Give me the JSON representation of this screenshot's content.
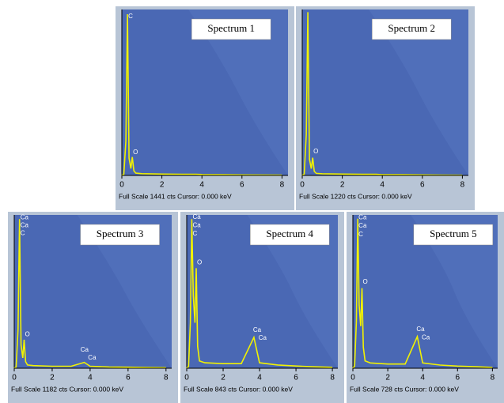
{
  "chart_data": [
    {
      "type": "line",
      "title": "Spectrum 1",
      "footer": "Full Scale 1441 cts  Cursor: 0.000 keV",
      "color": "#f2f200",
      "x": [
        0,
        0.1,
        0.2,
        0.28,
        0.36,
        0.45,
        0.52,
        0.6,
        0.7,
        1,
        2,
        3,
        3.69,
        4,
        5,
        6,
        7,
        8
      ],
      "values": [
        0,
        10,
        300,
        1400,
        150,
        60,
        160,
        40,
        20,
        15,
        12,
        10,
        10,
        8,
        6,
        5,
        4,
        3
      ],
      "xlim": [
        0,
        8.3
      ],
      "xticks": [
        0,
        2,
        4,
        6,
        8
      ],
      "ylim": [
        0,
        1441
      ],
      "annotations": [
        {
          "text": "C",
          "x": 0.28,
          "y": 1380
        },
        {
          "text": "O",
          "x": 0.52,
          "y": 200
        }
      ]
    },
    {
      "type": "line",
      "title": "Spectrum 2",
      "footer": "Full Scale 1220 cts  Cursor: 0.000 keV",
      "color": "#f2f200",
      "x": [
        0,
        0.1,
        0.2,
        0.28,
        0.36,
        0.45,
        0.52,
        0.6,
        0.7,
        1,
        2,
        3,
        3.69,
        4,
        5,
        6,
        7,
        8
      ],
      "values": [
        0,
        10,
        300,
        1200,
        120,
        50,
        130,
        30,
        15,
        12,
        10,
        8,
        8,
        6,
        5,
        4,
        3,
        2
      ],
      "xlim": [
        0,
        8.3
      ],
      "xticks": [
        0,
        2,
        4,
        6,
        8
      ],
      "ylim": [
        0,
        1220
      ],
      "annotations": [
        {
          "text": "O",
          "x": 0.52,
          "y": 175
        }
      ]
    },
    {
      "type": "line",
      "title": "Spectrum 3",
      "footer": "Full Scale 1182 cts  Cursor: 0.000 keV",
      "color": "#f2f200",
      "x": [
        0,
        0.1,
        0.2,
        0.28,
        0.36,
        0.45,
        0.52,
        0.6,
        0.7,
        1,
        2,
        3,
        3.69,
        4,
        5,
        6,
        7,
        8
      ],
      "values": [
        0,
        10,
        300,
        1150,
        180,
        80,
        220,
        50,
        25,
        20,
        15,
        15,
        45,
        15,
        10,
        8,
        6,
        4
      ],
      "xlim": [
        0,
        8.3
      ],
      "xticks": [
        0,
        2,
        4,
        6,
        8
      ],
      "ylim": [
        0,
        1182
      ],
      "annotations": [
        {
          "text": "Ca",
          "x": 0.28,
          "y": 1160
        },
        {
          "text": "Ca",
          "x": 0.28,
          "y": 1100
        },
        {
          "text": "C",
          "x": 0.28,
          "y": 1040
        },
        {
          "text": "O",
          "x": 0.52,
          "y": 260
        },
        {
          "text": "Ca",
          "x": 3.45,
          "y": 140
        },
        {
          "text": "Ca",
          "x": 3.85,
          "y": 80
        }
      ]
    },
    {
      "type": "line",
      "title": "Spectrum 4",
      "footer": "Full Scale 843 cts  Cursor: 0.000 keV",
      "color": "#f2f200",
      "x": [
        0,
        0.1,
        0.2,
        0.28,
        0.36,
        0.45,
        0.52,
        0.6,
        0.7,
        1,
        2,
        3,
        3.69,
        4,
        5,
        6,
        7,
        8
      ],
      "values": [
        0,
        10,
        250,
        820,
        400,
        250,
        550,
        120,
        40,
        30,
        25,
        25,
        170,
        30,
        18,
        12,
        8,
        5
      ],
      "xlim": [
        0,
        8.3
      ],
      "xticks": [
        0,
        2,
        4,
        6,
        8
      ],
      "ylim": [
        0,
        843
      ],
      "annotations": [
        {
          "text": "Ca",
          "x": 0.28,
          "y": 830
        },
        {
          "text": "Ca",
          "x": 0.28,
          "y": 785
        },
        {
          "text": "C",
          "x": 0.28,
          "y": 740
        },
        {
          "text": "O",
          "x": 0.52,
          "y": 580
        },
        {
          "text": "Ca",
          "x": 3.6,
          "y": 210
        },
        {
          "text": "Ca",
          "x": 3.9,
          "y": 165
        }
      ]
    },
    {
      "type": "line",
      "title": "Spectrum 5",
      "footer": "Full Scale 728 cts  Cursor: 0.000 keV",
      "color": "#f2f200",
      "x": [
        0,
        0.1,
        0.2,
        0.28,
        0.36,
        0.45,
        0.52,
        0.6,
        0.7,
        1,
        2,
        3,
        3.69,
        4,
        5,
        6,
        7,
        8
      ],
      "values": [
        0,
        10,
        220,
        710,
        300,
        200,
        380,
        100,
        35,
        25,
        20,
        20,
        150,
        25,
        15,
        10,
        7,
        4
      ],
      "xlim": [
        0,
        8.3
      ],
      "xticks": [
        0,
        2,
        4,
        6,
        8
      ],
      "ylim": [
        0,
        728
      ],
      "annotations": [
        {
          "text": "Ca",
          "x": 0.28,
          "y": 715
        },
        {
          "text": "Ca",
          "x": 0.28,
          "y": 675
        },
        {
          "text": "C",
          "x": 0.28,
          "y": 635
        },
        {
          "text": "O",
          "x": 0.52,
          "y": 410
        },
        {
          "text": "Ca",
          "x": 3.6,
          "y": 185
        },
        {
          "text": "Ca",
          "x": 3.9,
          "y": 145
        }
      ]
    }
  ]
}
